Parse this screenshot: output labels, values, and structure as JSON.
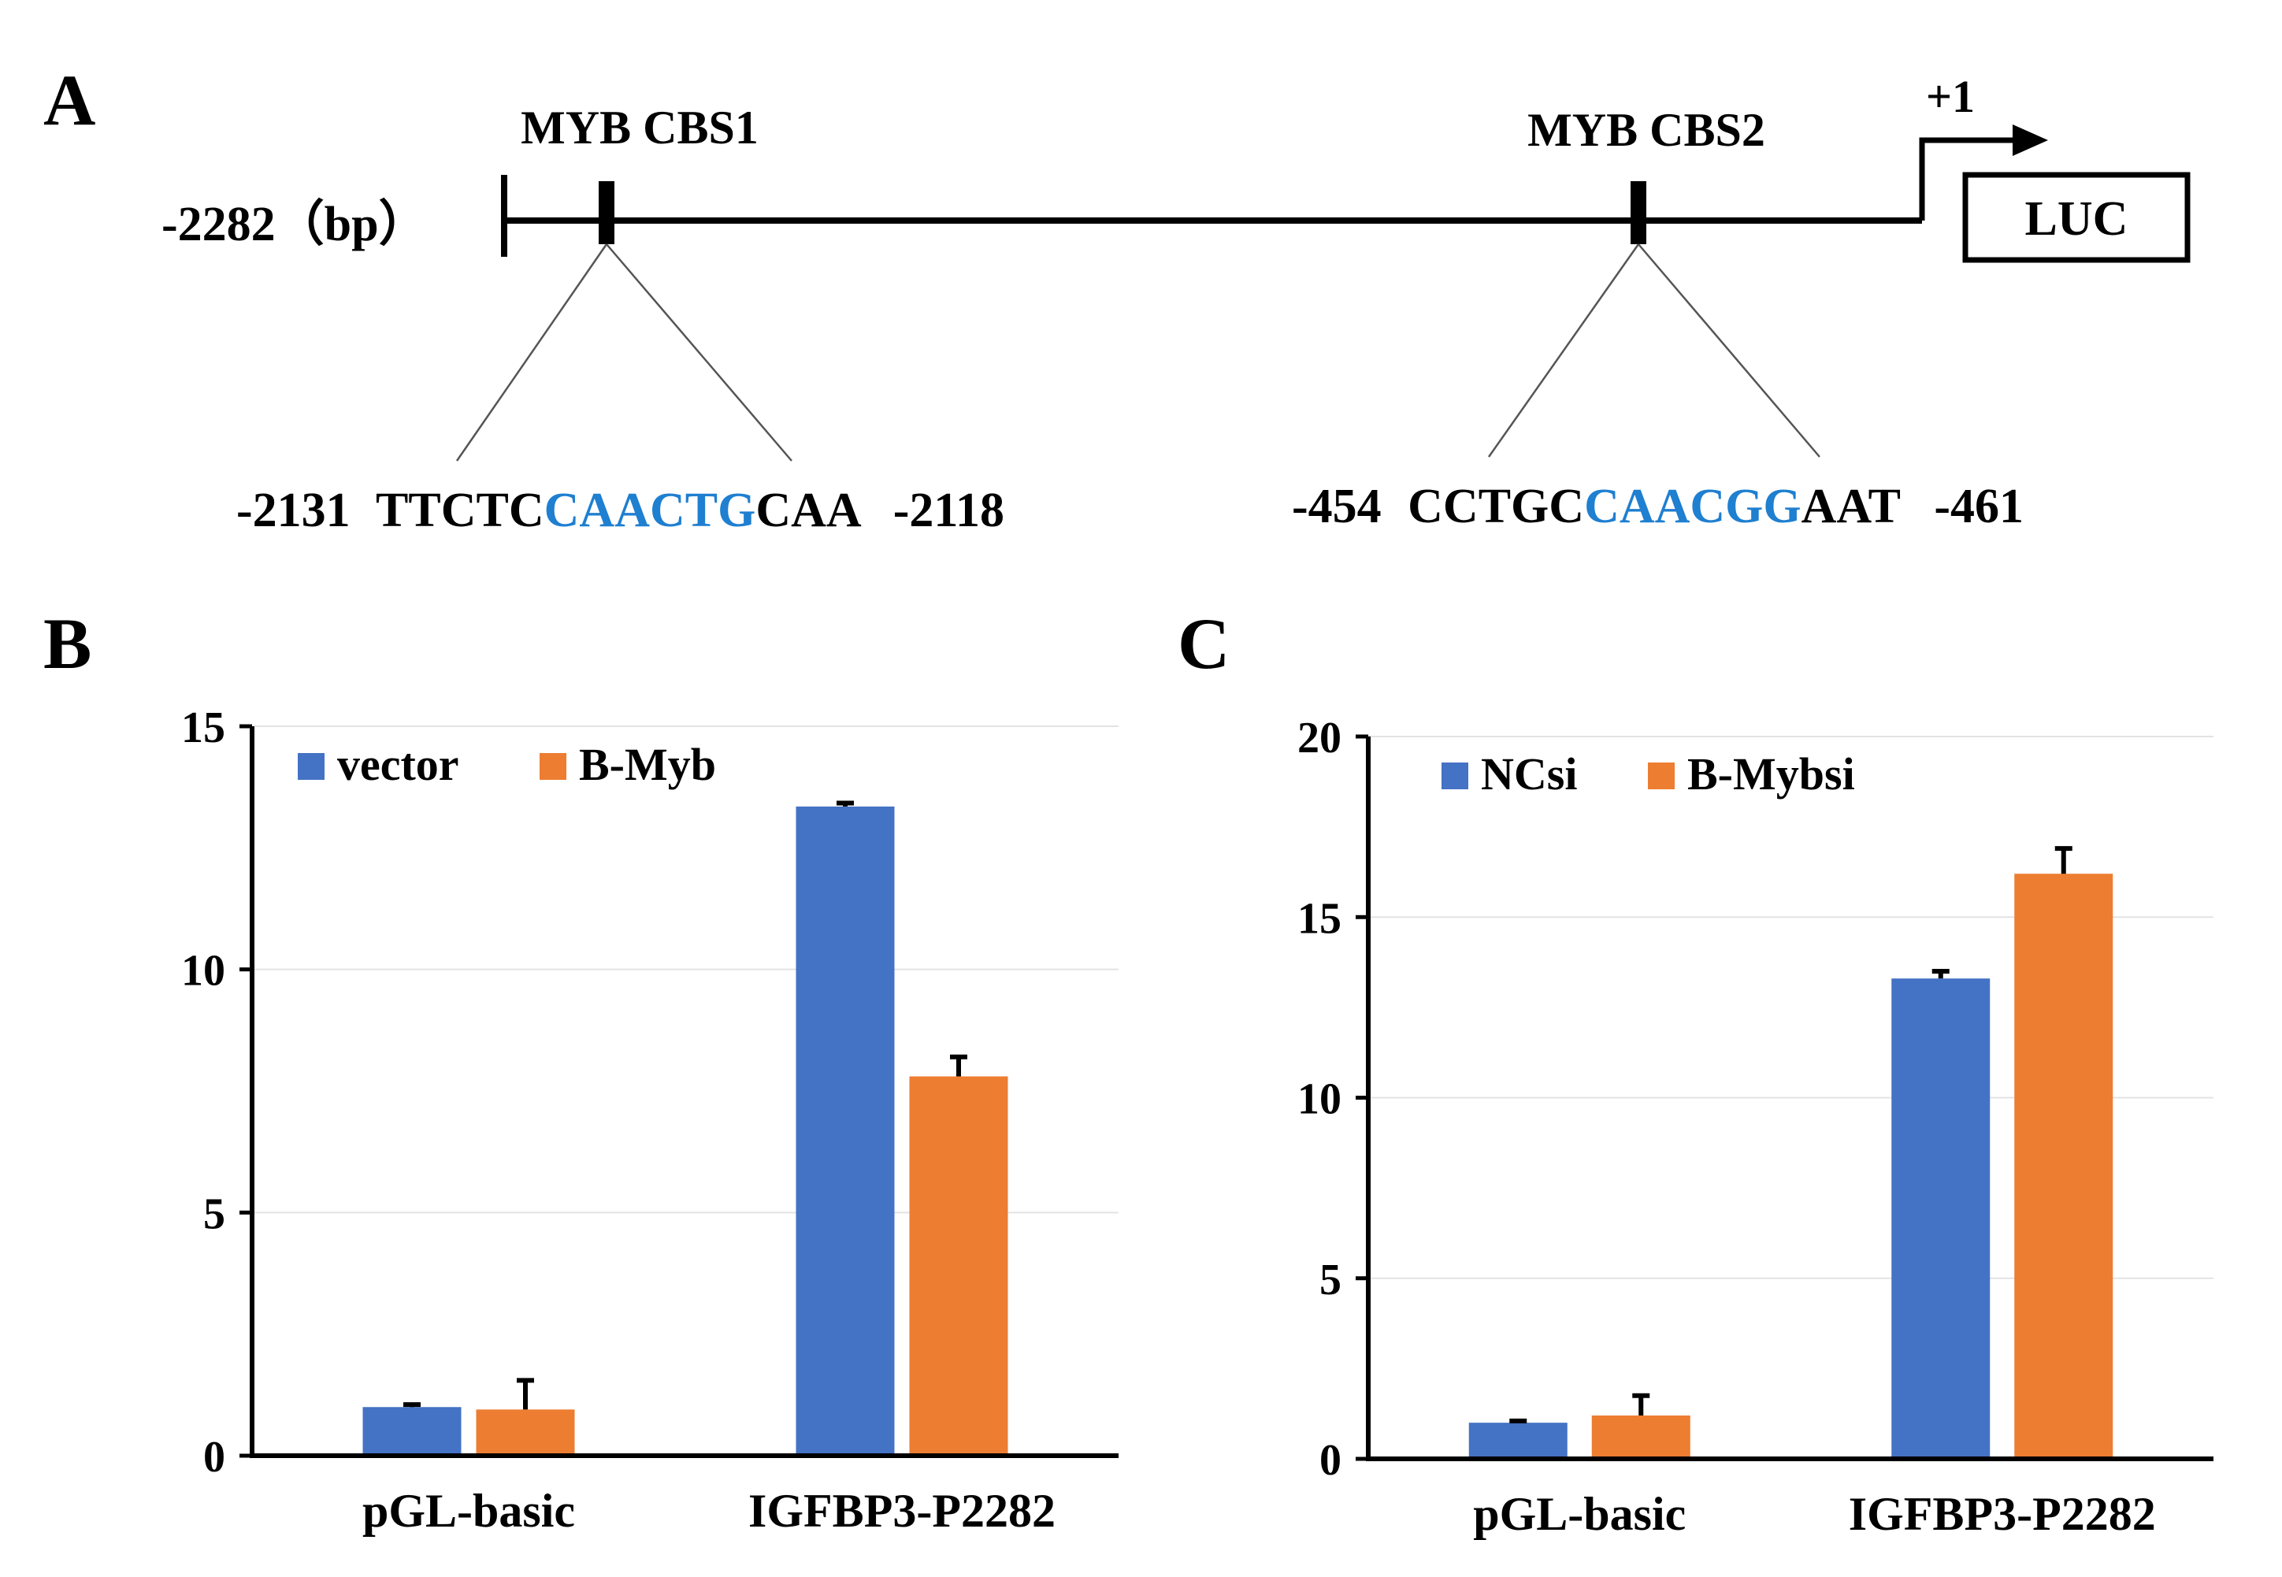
{
  "panel_a": {
    "label": "A",
    "start_label": "-2282（bp）",
    "tss_label": "+1",
    "reporter_label": "LUC",
    "sites": [
      {
        "name": "MYB CBS1",
        "seq_start": "-2131",
        "seq_prefix": "TTCTC",
        "seq_core": "CAACTG",
        "seq_suffix": "CAA",
        "seq_end": "-2118"
      },
      {
        "name": "MYB CBS2",
        "seq_start": "-454",
        "seq_prefix": "CCTGC",
        "seq_core": "CAACGG",
        "seq_suffix": "AAT",
        "seq_end": "-461"
      }
    ],
    "core_color": "#1f7fd0"
  },
  "chart_data": [
    {
      "panel": "B",
      "type": "bar",
      "categories": [
        "pGL-basic",
        "IGFBP3-P2282"
      ],
      "series": [
        {
          "name": "vector",
          "color": "#4472c4",
          "values": [
            1.0,
            13.35
          ],
          "errors": [
            0.05,
            0.07
          ]
        },
        {
          "name": "B-Myb",
          "color": "#ed7d31",
          "values": [
            0.95,
            7.8
          ],
          "errors": [
            0.6,
            0.4
          ]
        }
      ],
      "ylim": [
        0,
        15
      ],
      "yticks": [
        0,
        5,
        10,
        15
      ],
      "grid": true,
      "legend": "top-left"
    },
    {
      "panel": "C",
      "type": "bar",
      "categories": [
        "pGL-basic",
        "IGFBP3-P2282"
      ],
      "series": [
        {
          "name": "NCsi",
          "color": "#4472c4",
          "values": [
            1.0,
            13.3
          ],
          "errors": [
            0.05,
            0.2
          ]
        },
        {
          "name": "B-Mybsi",
          "color": "#ed7d31",
          "values": [
            1.2,
            16.2
          ],
          "errors": [
            0.55,
            0.7
          ]
        }
      ],
      "ylim": [
        0,
        20
      ],
      "yticks": [
        0,
        5,
        10,
        15,
        20
      ],
      "grid": true,
      "legend": "top-left"
    }
  ]
}
